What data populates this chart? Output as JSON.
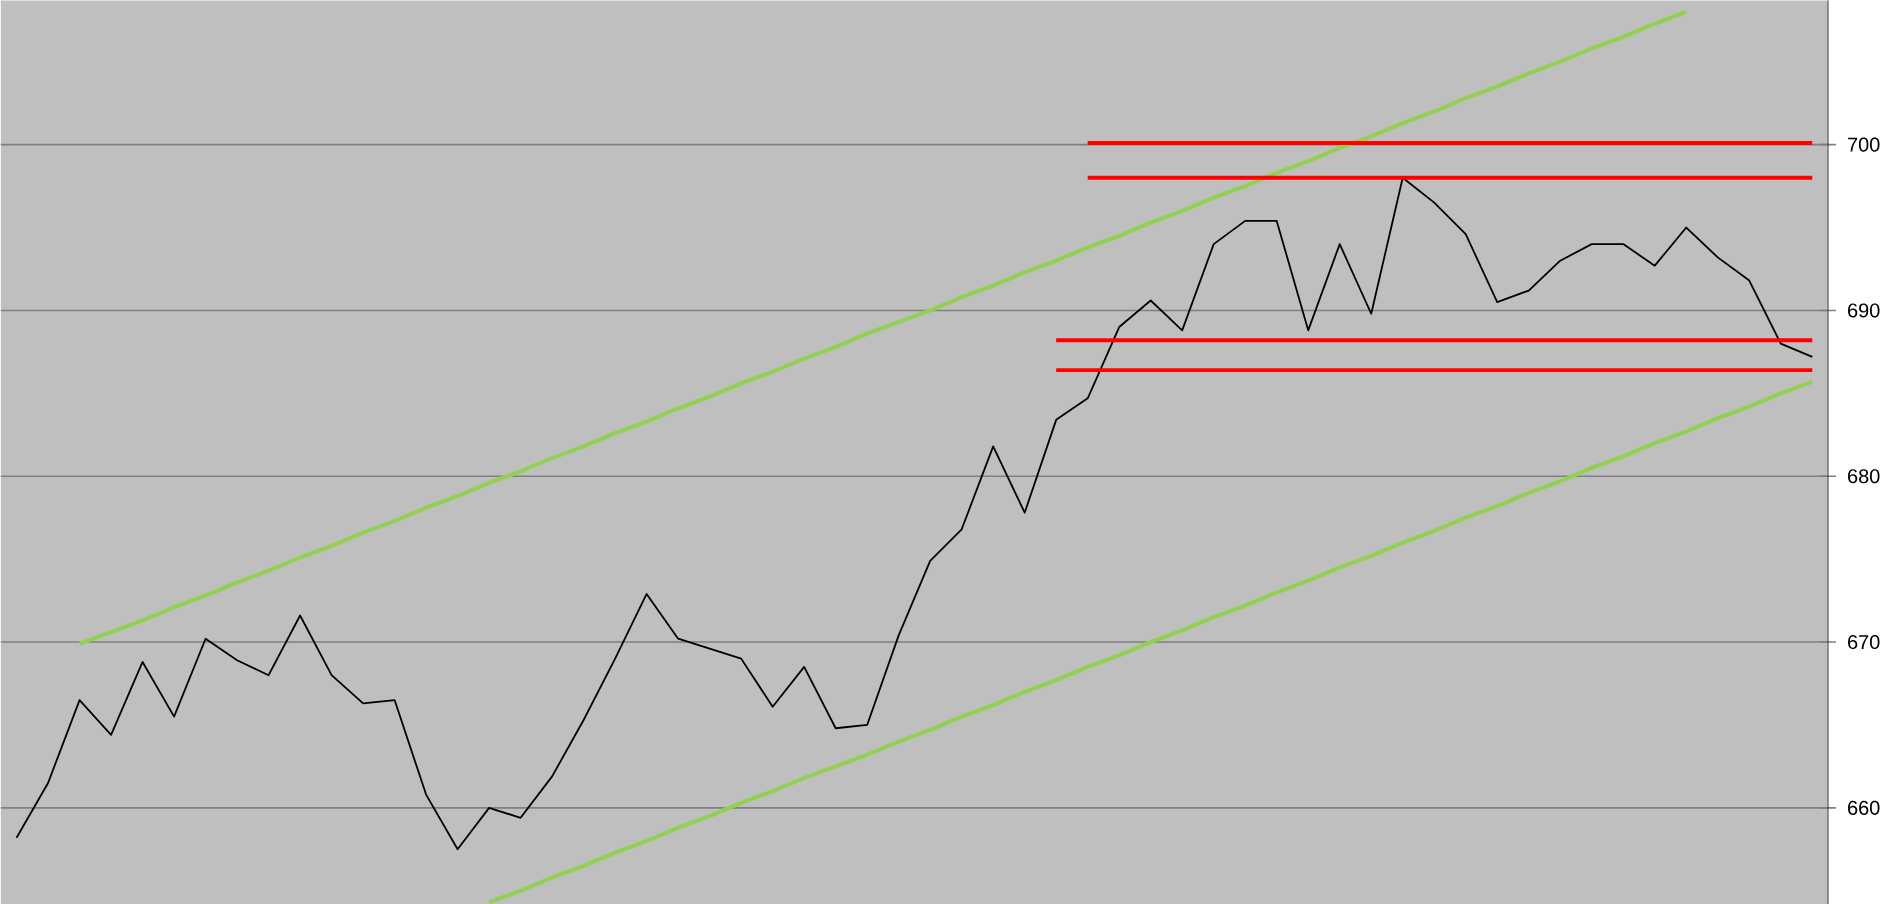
{
  "chart_data": {
    "type": "line",
    "categories": [
      null,
      null,
      null,
      null,
      null,
      null,
      null,
      null,
      null,
      null,
      null,
      null,
      null,
      null,
      null,
      null,
      null,
      null,
      null,
      null,
      null,
      null,
      null,
      null,
      null,
      null,
      null,
      null,
      null,
      null,
      null,
      null,
      null,
      null,
      null,
      null,
      null,
      null,
      null,
      null,
      null,
      null,
      null,
      null,
      null,
      null,
      null,
      null,
      null,
      null,
      null,
      null,
      null,
      null,
      null,
      null,
      null,
      null
    ],
    "ylim": [
      654.2,
      708.7
    ],
    "yticks": [
      660,
      670,
      680,
      690,
      700
    ],
    "tick_labels": "y",
    "grid": "y",
    "series": [
      {
        "color": "#000000",
        "values": [
          658.2,
          661.5,
          666.5,
          664.4,
          668.8,
          665.5,
          670.2,
          668.9,
          668.0,
          671.6,
          668.0,
          666.3,
          666.5,
          660.8,
          657.5,
          660.0,
          659.4,
          661.9,
          665.3,
          669.0,
          672.9,
          670.2,
          669.6,
          669.0,
          666.1,
          668.5,
          664.8,
          665.0,
          670.4,
          674.9,
          676.8,
          681.8,
          677.8,
          683.4,
          684.7,
          689.0,
          690.6,
          688.8,
          694.0,
          695.4,
          695.4,
          688.8,
          694.0,
          689.8,
          698.0,
          696.5,
          694.6,
          690.5,
          691.2,
          693.0,
          694.0,
          694.0,
          692.7,
          695.0,
          693.2,
          691.8,
          688.0,
          687.2
        ]
      },
      {
        "color": "#92d050",
        "values": [
          null,
          null,
          669.9,
          670.6,
          671.3,
          672.1,
          672.8,
          673.6,
          674.3,
          675.1,
          675.8,
          676.6,
          677.3,
          678.1,
          678.8,
          679.6,
          680.3,
          681.1,
          681.8,
          682.6,
          683.3,
          684.1,
          684.8,
          685.6,
          686.3,
          687.1,
          687.8,
          688.6,
          689.3,
          690.0,
          690.8,
          691.5,
          692.3,
          693.0,
          693.8,
          694.5,
          695.3,
          696.0,
          696.8,
          697.5,
          698.3,
          699.0,
          699.8,
          700.5,
          701.3,
          702.0,
          702.8,
          703.5,
          704.3,
          705.0,
          705.8,
          706.5,
          707.3,
          708.0,
          null,
          null,
          null,
          null
        ]
      },
      {
        "color": "#92d050",
        "values": [
          null,
          null,
          null,
          null,
          null,
          null,
          null,
          null,
          null,
          null,
          null,
          null,
          null,
          null,
          null,
          654.3,
          655.0,
          655.8,
          656.5,
          657.3,
          658.0,
          658.8,
          659.5,
          660.3,
          661.0,
          661.8,
          662.5,
          663.2,
          664.0,
          664.7,
          665.5,
          666.2,
          667.0,
          667.7,
          668.5,
          669.2,
          670.0,
          670.7,
          671.5,
          672.2,
          673.0,
          673.7,
          674.5,
          675.2,
          676.0,
          676.7,
          677.5,
          678.2,
          679.0,
          679.7,
          680.5,
          681.2,
          682.0,
          682.7,
          683.5,
          684.2,
          685.0,
          685.7
        ]
      },
      {
        "color": "#ff0000",
        "values": [
          null,
          null,
          null,
          null,
          null,
          null,
          null,
          null,
          null,
          null,
          null,
          null,
          null,
          null,
          null,
          null,
          null,
          null,
          null,
          null,
          null,
          null,
          null,
          null,
          null,
          null,
          null,
          null,
          null,
          null,
          null,
          null,
          null,
          null,
          700.1,
          700.1,
          700.1,
          700.1,
          700.1,
          700.1,
          700.1,
          700.1,
          700.1,
          700.1,
          700.1,
          700.1,
          700.1,
          700.1,
          700.1,
          700.1,
          700.1,
          700.1,
          700.1,
          700.1,
          700.1,
          700.1,
          700.1,
          700.1
        ]
      },
      {
        "color": "#ff0000",
        "values": [
          null,
          null,
          null,
          null,
          null,
          null,
          null,
          null,
          null,
          null,
          null,
          null,
          null,
          null,
          null,
          null,
          null,
          null,
          null,
          null,
          null,
          null,
          null,
          null,
          null,
          null,
          null,
          null,
          null,
          null,
          null,
          null,
          null,
          null,
          698.0,
          698.0,
          698.0,
          698.0,
          698.0,
          698.0,
          698.0,
          698.0,
          698.0,
          698.0,
          698.0,
          698.0,
          698.0,
          698.0,
          698.0,
          698.0,
          698.0,
          698.0,
          698.0,
          698.0,
          698.0,
          698.0,
          698.0,
          698.0
        ]
      },
      {
        "color": "#ff0000",
        "values": [
          null,
          null,
          null,
          null,
          null,
          null,
          null,
          null,
          null,
          null,
          null,
          null,
          null,
          null,
          null,
          null,
          null,
          null,
          null,
          null,
          null,
          null,
          null,
          null,
          null,
          null,
          null,
          null,
          null,
          null,
          null,
          null,
          null,
          688.2,
          688.2,
          688.2,
          688.2,
          688.2,
          688.2,
          688.2,
          688.2,
          688.2,
          688.2,
          688.2,
          688.2,
          688.2,
          688.2,
          688.2,
          688.2,
          688.2,
          688.2,
          688.2,
          688.2,
          688.2,
          688.2,
          688.2,
          688.2,
          688.2
        ]
      },
      {
        "color": "#ff0000",
        "values": [
          null,
          null,
          null,
          null,
          null,
          null,
          null,
          null,
          null,
          null,
          null,
          null,
          null,
          null,
          null,
          null,
          null,
          null,
          null,
          null,
          null,
          null,
          null,
          null,
          null,
          null,
          null,
          null,
          null,
          null,
          null,
          null,
          null,
          686.4,
          686.4,
          686.4,
          686.4,
          686.4,
          686.4,
          686.4,
          686.4,
          686.4,
          686.4,
          686.4,
          686.4,
          686.4,
          686.4,
          686.4,
          686.4,
          686.4,
          686.4,
          686.4,
          686.4,
          686.4,
          686.4,
          686.4,
          686.4,
          686.4
        ]
      }
    ]
  }
}
